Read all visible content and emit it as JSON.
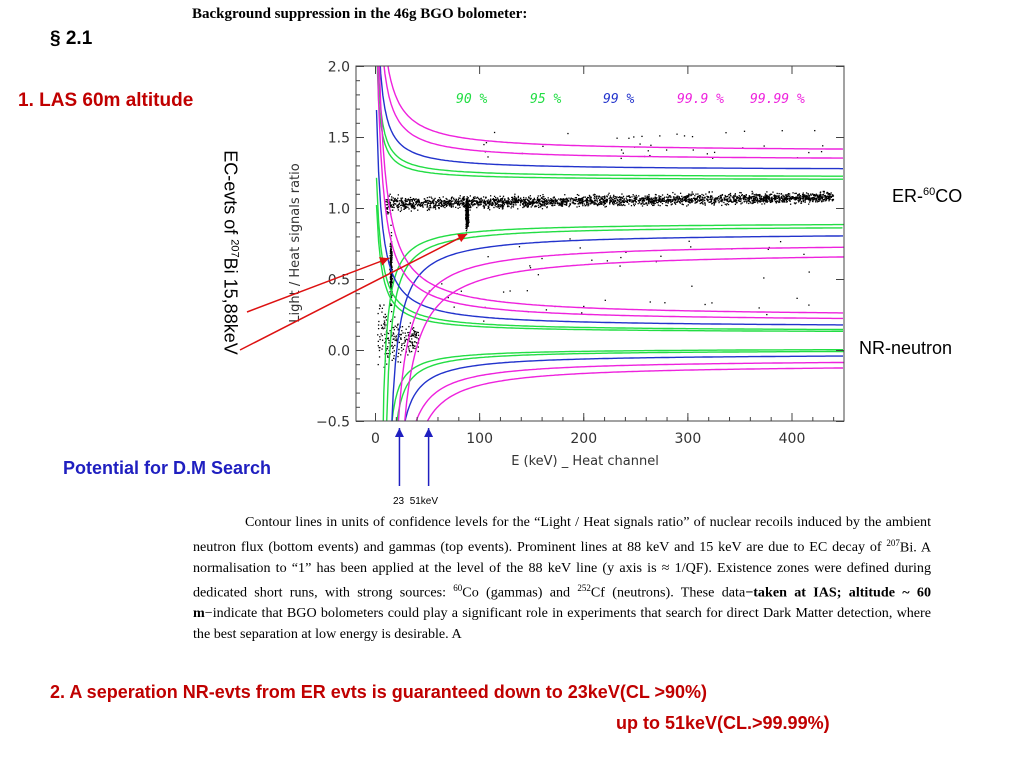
{
  "slide": {
    "section": "§ 2.1",
    "heading1": "1. LAS 60m altitude",
    "ec_label_pre": "EC-evts of ",
    "ec_label_sup": "207",
    "ec_label_post": "Bi 15,88keV",
    "er_label_pre": "ER-",
    "er_label_sup": "60",
    "er_label_post": "CO",
    "nr_label": "NR-neutron",
    "dm_label": "Potential for D.M Search",
    "tick_23": "23",
    "tick_51": "51keV",
    "result_line1": "2. A seperation NR-evts from ER evts  is guaranteed down to 23keV(CL >90%)",
    "result_line2": "up to  51keV(CL.>99.99%)"
  },
  "caption": {
    "s1": "Contour lines in units of confidence levels for the “Light / Heat signals ratio” of nuclear recoils induced by the ambient neutron flux (bottom events) and gammas (top events). Prominent lines at 88 keV and 15 keV are due to EC decay of ",
    "s1_sup": "207",
    "s2": "Bi. A normalisation to “1” has been applied at the level of the 88 keV line (y axis is ≈ 1/QF). Existence zones were defined during dedicated short runs, with strong sources: ",
    "s2_sup": "60",
    "s3": "Co (gammas) and ",
    "s3_sup": "252",
    "s4": "Cf (neutrons). These data",
    "b1": "−taken at IAS;",
    "b2": "altitude ~ 60 m",
    "s5": "−indicate that BGO bolometers could play a significant role in experiments that search for direct Dark Matter detection, where the best separation at low energy is desirable. A"
  },
  "chart_data": {
    "type": "scatter",
    "title": "Background suppression in the 46g BGO bolometer:",
    "xlabel": "E (keV) _ Heat channel",
    "ylabel": "Light / Heat signals ratio",
    "xlim": [
      -10,
      450
    ],
    "ylim": [
      -0.5,
      2.0
    ],
    "x_ticks": [
      0,
      100,
      200,
      300,
      400
    ],
    "y_ticks": [
      -0.5,
      0.0,
      0.5,
      1.0,
      1.5,
      2.0
    ],
    "x_tick_labels": [
      "0",
      "100",
      "200",
      "300",
      "400"
    ],
    "y_tick_labels": [
      "−0.5",
      "0.0",
      "0.5",
      "1.0",
      "1.5",
      "2.0"
    ],
    "legend": [
      {
        "label": "90 %",
        "color": "#22dd44"
      },
      {
        "label": "95 %",
        "color": "#22dd44"
      },
      {
        "label": "99 %",
        "color": "#2233cc"
      },
      {
        "label": "99.9 %",
        "color": "#ee22dd"
      },
      {
        "label": "99.99 %",
        "color": "#ee22dd"
      }
    ],
    "prominent_lines_keV": [
      15,
      88
    ],
    "band_centers": {
      "gamma": 1.0,
      "neutron": 0.07
    },
    "contour_half_widths_asymptotic": {
      "90 %": 0.1,
      "95 %": 0.12,
      "99 %": 0.17,
      "99.9 %": 0.24,
      "99.99 %": 0.3
    },
    "arrows_keV": [
      23,
      51
    ],
    "colors": {
      "annotation_arrow": "#dd1111",
      "dm_arrow": "#1f1fc0"
    }
  }
}
